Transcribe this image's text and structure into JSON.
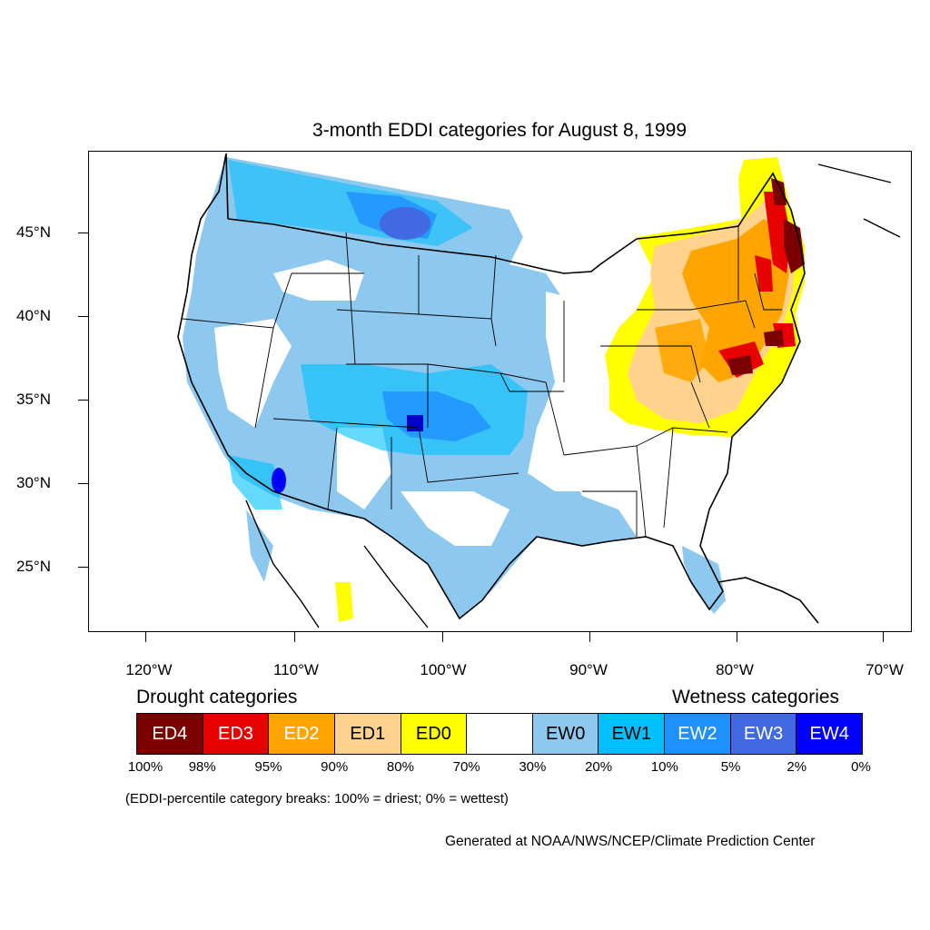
{
  "title": "3-month EDDI categories for August 8, 1999",
  "lat_labels": [
    "45°N",
    "40°N",
    "35°N",
    "30°N",
    "25°N"
  ],
  "lon_labels": [
    "120°W",
    "110°W",
    "100°W",
    "90°W",
    "80°W",
    "70°W"
  ],
  "legend": {
    "drought_heading": "Drought categories",
    "wetness_heading": "Wetness categories",
    "categories": [
      {
        "label": "ED4",
        "color": "#7a0000",
        "text_color": "#ffffff"
      },
      {
        "label": "ED3",
        "color": "#e60000",
        "text_color": "#ffffff"
      },
      {
        "label": "ED2",
        "color": "#ffa500",
        "text_color": "#ffffff"
      },
      {
        "label": "ED1",
        "color": "#ffd38c",
        "text_color": "#000000"
      },
      {
        "label": "ED0",
        "color": "#ffff00",
        "text_color": "#000000"
      },
      {
        "label": "",
        "color": "#ffffff",
        "text_color": "#000000"
      },
      {
        "label": "EW0",
        "color": "#8dc8ee",
        "text_color": "#000000"
      },
      {
        "label": "EW1",
        "color": "#00bfff",
        "text_color": "#000000"
      },
      {
        "label": "EW2",
        "color": "#1e90ff",
        "text_color": "#ffffff"
      },
      {
        "label": "EW3",
        "color": "#4169e1",
        "text_color": "#ffffff"
      },
      {
        "label": "EW4",
        "color": "#0000ff",
        "text_color": "#ffffff"
      }
    ],
    "percentile_breaks": [
      "100%",
      "98%",
      "95%",
      "90%",
      "80%",
      "70%",
      "30%",
      "20%",
      "10%",
      "5%",
      "2%",
      "0%"
    ]
  },
  "note": "(EDDI-percentile category breaks: 100% = driest; 0% = wettest)",
  "credit": "Generated at NOAA/NWS/NCEP/Climate Prediction Center"
}
